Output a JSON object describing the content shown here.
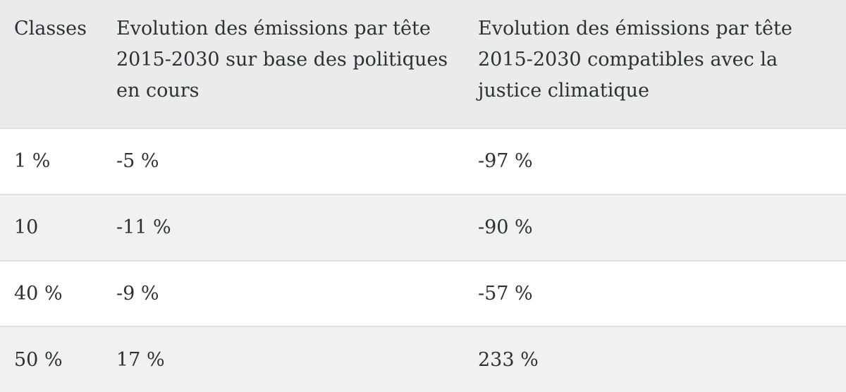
{
  "table": {
    "columns": [
      "Classes",
      "Evolution des émissions par tête 2015-2030 sur base des politiques en cours",
      "Evolution des émissions par tête 2015-2030 compatibles avec la justice climatique"
    ],
    "rows": [
      [
        "1 %",
        "-5 %",
        "-97 %"
      ],
      [
        "10",
        "-11 %",
        "-90 %"
      ],
      [
        "40 %",
        "-9 %",
        "-57 %"
      ],
      [
        "50 %",
        "17 %",
        "233 %"
      ]
    ]
  },
  "colors": {
    "header_bg": "#eaebeb",
    "row_alt_bg": "#f0f1f1",
    "row_bg": "#ffffff",
    "border": "#dee2e5",
    "text": "#2d3136"
  }
}
